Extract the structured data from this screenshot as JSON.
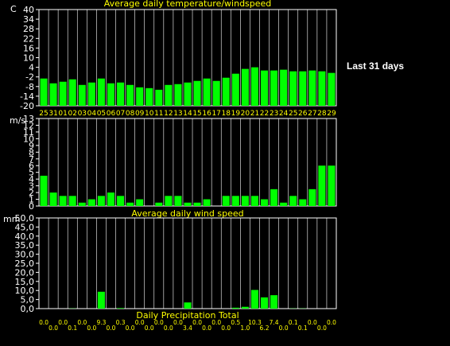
{
  "period_label": "Last 31 days",
  "colors": {
    "bar": "#00ff00",
    "grid": "#ffffff",
    "title": "#ffff00",
    "text": "#ffffff",
    "background": "#000000"
  },
  "chart_data": [
    {
      "type": "bar",
      "title": "Average daily temperature/windspeed",
      "ylabel": "C",
      "ylim": [
        -20,
        40
      ],
      "yticks": [
        40,
        34,
        28,
        22,
        16,
        10,
        4,
        -2,
        -8,
        -14,
        -20
      ],
      "categories": [
        "25",
        "31",
        "01",
        "02",
        "03",
        "04",
        "05",
        "06",
        "07",
        "08",
        "09",
        "10",
        "11",
        "12",
        "13",
        "14",
        "15",
        "16",
        "17",
        "18",
        "19",
        "20",
        "21",
        "22",
        "23",
        "24",
        "25",
        "26",
        "27",
        "28",
        "29"
      ],
      "values": [
        -3.0,
        -6.0,
        -5.0,
        -3.5,
        -7.0,
        -5.5,
        -3.0,
        -6.0,
        -5.5,
        -7.0,
        -8.5,
        -9.0,
        -10.0,
        -7.0,
        -6.5,
        -5.5,
        -4.5,
        -3.0,
        -4.5,
        -2.5,
        0.0,
        3.0,
        4.0,
        2.0,
        2.0,
        2.5,
        1.5,
        1.5,
        2.0,
        1.5,
        0.5
      ]
    },
    {
      "type": "bar",
      "title": "Average daily wind speed",
      "ylabel": "m/s",
      "ylim": [
        0,
        13
      ],
      "yticks": [
        13,
        12,
        11,
        10,
        9,
        8,
        7,
        6,
        5,
        4,
        3,
        2,
        1,
        0
      ],
      "values": [
        4.5,
        2.0,
        1.5,
        1.5,
        0.5,
        1.0,
        1.5,
        2.0,
        1.5,
        0.5,
        1.0,
        0.0,
        0.5,
        1.5,
        1.5,
        0.5,
        0.5,
        1.0,
        0.0,
        1.5,
        1.5,
        1.5,
        1.5,
        1.0,
        2.5,
        0.5,
        1.5,
        1.0,
        2.5,
        6.0,
        6.0
      ]
    },
    {
      "type": "bar",
      "title": "Daily Precipitation Total",
      "ylabel": "mm",
      "ylim": [
        0,
        50
      ],
      "yticks": [
        "50,0",
        "45,0",
        "40,0",
        "35,0",
        "30,0",
        "25,0",
        "20,0",
        "15,0",
        "10,0",
        "5,0",
        "0,0"
      ],
      "values": [
        0.0,
        0.0,
        0.0,
        0.1,
        0.0,
        0.0,
        9.3,
        0.0,
        0.3,
        0.0,
        0.0,
        0.0,
        0.0,
        0.0,
        0.0,
        3.4,
        0.0,
        0.0,
        0.0,
        0.0,
        0.5,
        1.0,
        10.3,
        6.2,
        7.4,
        0.0,
        0.1,
        0.1,
        0.0,
        0.0,
        0.0
      ],
      "value_labels": [
        "0.0",
        "0.0",
        "0.0",
        "0.1",
        "0.0",
        "0.0",
        "9.3",
        "0.0",
        "0.3",
        "0.0",
        "0.0",
        "0.0",
        "0.0",
        "0.0",
        "0.0",
        "3.4",
        "0.0",
        "0.0",
        "0.0",
        "0.0",
        "0.5",
        "1.0",
        "10.3",
        "6.2",
        "7.4",
        "0.0",
        "0.1",
        "0.1",
        "0.0",
        "0.0",
        "0.0"
      ]
    }
  ]
}
